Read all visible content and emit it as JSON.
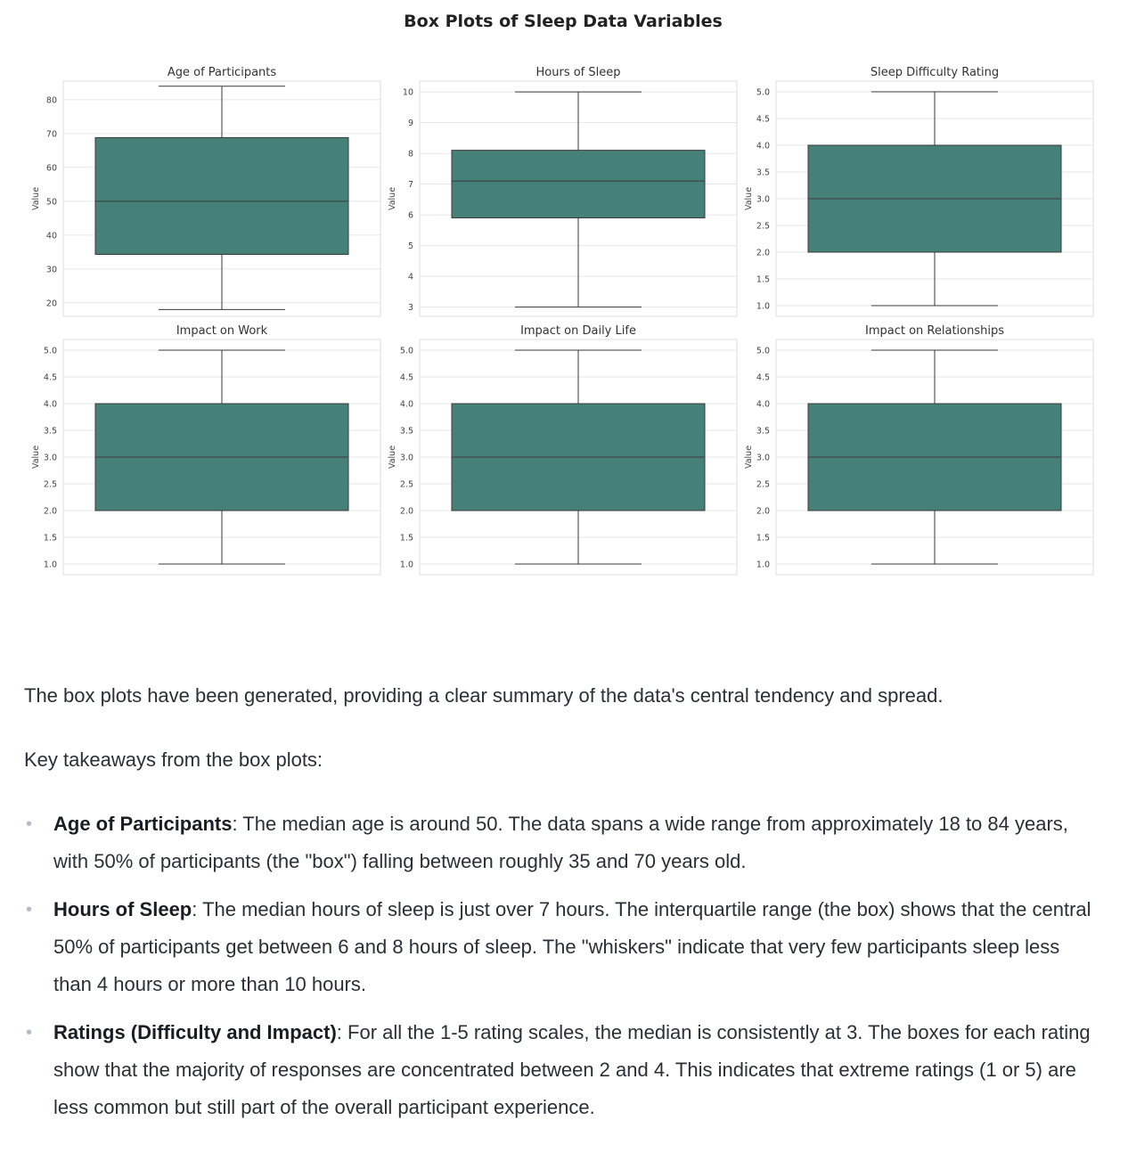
{
  "chart_data": {
    "type": "box",
    "title": "Box Plots of Sleep Data Variables",
    "box_color": "#458079",
    "line_color": "#3a3a3a",
    "grid": true,
    "panels": [
      {
        "title": "Age of Participants",
        "ylabel": "Value",
        "ylim": [
          16,
          85.5
        ],
        "yticks": [
          "20",
          "30",
          "40",
          "50",
          "60",
          "70",
          "80"
        ],
        "ytick_values": [
          20,
          30,
          40,
          50,
          60,
          70,
          80
        ],
        "stats": {
          "whisker_low": 18,
          "q1": 34.3,
          "median": 50,
          "q3": 68.8,
          "whisker_high": 84
        }
      },
      {
        "title": "Hours of Sleep",
        "ylabel": "Value",
        "ylim": [
          2.7,
          10.35
        ],
        "yticks": [
          "3",
          "4",
          "5",
          "6",
          "7",
          "8",
          "9",
          "10"
        ],
        "ytick_values": [
          3,
          4,
          5,
          6,
          7,
          8,
          9,
          10
        ],
        "stats": {
          "whisker_low": 3,
          "q1": 5.9,
          "median": 7.1,
          "q3": 8.1,
          "whisker_high": 10
        }
      },
      {
        "title": "Sleep Difficulty Rating",
        "ylabel": "Value",
        "ylim": [
          0.8,
          5.2
        ],
        "yticks": [
          "1.0",
          "1.5",
          "2.0",
          "2.5",
          "3.0",
          "3.5",
          "4.0",
          "4.5",
          "5.0"
        ],
        "ytick_values": [
          1,
          1.5,
          2,
          2.5,
          3,
          3.5,
          4,
          4.5,
          5
        ],
        "stats": {
          "whisker_low": 1,
          "q1": 2,
          "median": 3,
          "q3": 4,
          "whisker_high": 5
        }
      },
      {
        "title": "Impact on Work",
        "ylabel": "Value",
        "ylim": [
          0.8,
          5.2
        ],
        "yticks": [
          "1.0",
          "1.5",
          "2.0",
          "2.5",
          "3.0",
          "3.5",
          "4.0",
          "4.5",
          "5.0"
        ],
        "ytick_values": [
          1,
          1.5,
          2,
          2.5,
          3,
          3.5,
          4,
          4.5,
          5
        ],
        "stats": {
          "whisker_low": 1,
          "q1": 2,
          "median": 3,
          "q3": 4,
          "whisker_high": 5
        }
      },
      {
        "title": "Impact on Daily Life",
        "ylabel": "Value",
        "ylim": [
          0.8,
          5.2
        ],
        "yticks": [
          "1.0",
          "1.5",
          "2.0",
          "2.5",
          "3.0",
          "3.5",
          "4.0",
          "4.5",
          "5.0"
        ],
        "ytick_values": [
          1,
          1.5,
          2,
          2.5,
          3,
          3.5,
          4,
          4.5,
          5
        ],
        "stats": {
          "whisker_low": 1,
          "q1": 2,
          "median": 3,
          "q3": 4,
          "whisker_high": 5
        }
      },
      {
        "title": "Impact on Relationships",
        "ylabel": "Value",
        "ylim": [
          0.8,
          5.2
        ],
        "yticks": [
          "1.0",
          "1.5",
          "2.0",
          "2.5",
          "3.0",
          "3.5",
          "4.0",
          "4.5",
          "5.0"
        ],
        "ytick_values": [
          1,
          1.5,
          2,
          2.5,
          3,
          3.5,
          4,
          4.5,
          5
        ],
        "stats": {
          "whisker_low": 1,
          "q1": 2,
          "median": 3,
          "q3": 4,
          "whisker_high": 5
        }
      }
    ]
  },
  "prose": {
    "intro": "The box plots have been generated, providing a clear summary of the data's central tendency and spread.",
    "key_heading": "Key takeaways from the box plots:",
    "bullets": [
      {
        "term": "Age of Participants",
        "text": ": The median age is around 50. The data spans a wide range from approximately 18 to 84 years, with 50% of participants (the \"box\") falling between roughly 35 and 70 years old."
      },
      {
        "term": "Hours of Sleep",
        "text": ": The median hours of sleep is just over 7 hours. The interquartile range (the box) shows that the central 50% of participants get between 6 and 8 hours of sleep. The \"whiskers\" indicate that very few participants sleep less than 4 hours or more than 10 hours."
      },
      {
        "term": "Ratings (Difficulty and Impact)",
        "text": ": For all the 1-5 rating scales, the median is consistently at 3. The boxes for each rating show that the majority of responses are concentrated between 2 and 4. This indicates that extreme ratings (1 or 5) are less common but still part of the overall participant experience."
      }
    ]
  }
}
